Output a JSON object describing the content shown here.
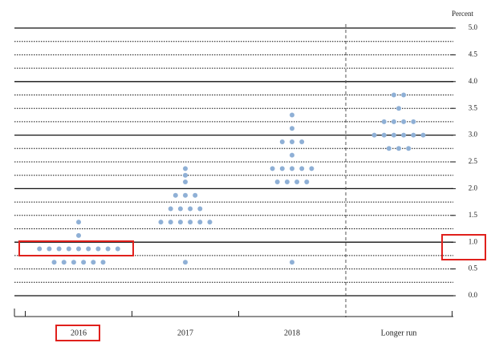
{
  "chart_data": {
    "type": "dot",
    "y_label": "Percent",
    "categories": [
      "2016",
      "2017",
      "2018",
      "Longer run"
    ],
    "color": "#8fb0d6",
    "ylim": [
      0,
      5
    ],
    "grid_step": 0.25,
    "yticks": [
      {
        "value": 0,
        "label": "0.0"
      },
      {
        "value": 0.5,
        "label": "0.5"
      },
      {
        "value": 1,
        "label": "1.0"
      },
      {
        "value": 1.5,
        "label": "1.5"
      },
      {
        "value": 2,
        "label": "2.0"
      },
      {
        "value": 2.5,
        "label": "2.5"
      },
      {
        "value": 3,
        "label": "3.0"
      },
      {
        "value": 3.5,
        "label": "3.5"
      },
      {
        "value": 4,
        "label": "4.0"
      },
      {
        "value": 4.5,
        "label": "4.5"
      },
      {
        "value": 5,
        "label": "5.0"
      }
    ],
    "dots": [
      [
        {
          "value": 0.625,
          "count": 6
        },
        {
          "value": 0.875,
          "count": 9
        },
        {
          "value": 1.125,
          "count": 1
        },
        {
          "value": 1.375,
          "count": 1
        }
      ],
      [
        {
          "value": 0.625,
          "count": 1
        },
        {
          "value": 1.375,
          "count": 6
        },
        {
          "value": 1.625,
          "count": 4
        },
        {
          "value": 1.875,
          "count": 3
        },
        {
          "value": 2.125,
          "count": 1
        },
        {
          "value": 2.25,
          "count": 1
        },
        {
          "value": 2.375,
          "count": 1
        }
      ],
      [
        {
          "value": 0.625,
          "count": 1
        },
        {
          "value": 2.125,
          "count": 4
        },
        {
          "value": 2.375,
          "count": 5
        },
        {
          "value": 2.625,
          "count": 1
        },
        {
          "value": 2.875,
          "count": 3
        },
        {
          "value": 3.125,
          "count": 1
        },
        {
          "value": 3.375,
          "count": 1
        }
      ],
      [
        {
          "value": 2.75,
          "count": 3
        },
        {
          "value": 3,
          "count": 6
        },
        {
          "value": 3.25,
          "count": 4
        },
        {
          "value": 3.5,
          "count": 1
        },
        {
          "value": 3.75,
          "count": 2
        }
      ]
    ]
  }
}
